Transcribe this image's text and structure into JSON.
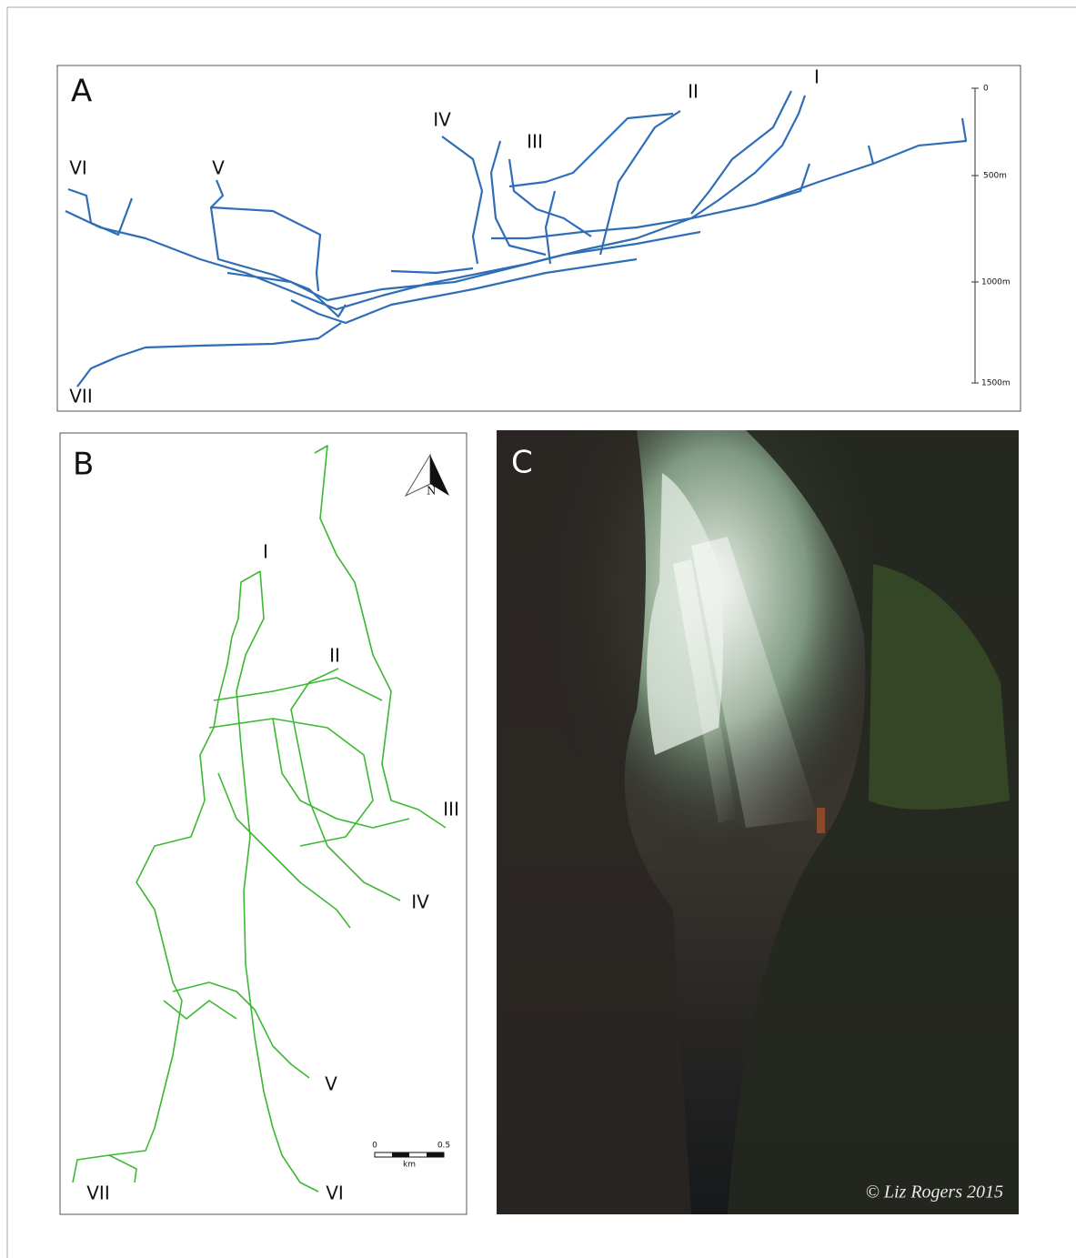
{
  "panels": [
    {
      "label": "A",
      "entrances": [
        "I",
        "II",
        "III",
        "IV",
        "V",
        "VI",
        "VII"
      ],
      "depth_scale": [
        "0",
        "500m",
        "1000m",
        "1500m"
      ]
    },
    {
      "label": "B",
      "entrances": [
        "I",
        "II",
        "III",
        "IV",
        "V",
        "VI",
        "VII"
      ],
      "north": "N",
      "scale_bar": [
        "0",
        "0.5",
        "km"
      ]
    },
    {
      "label": "C",
      "credit": "© Liz Rogers 2015"
    }
  ]
}
